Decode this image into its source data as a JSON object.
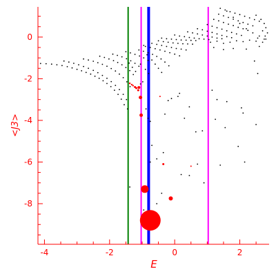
{
  "chart_data": {
    "type": "scatter",
    "xlabel": "E",
    "ylabel": "<J3>",
    "xlim": [
      -4.2,
      2.9
    ],
    "ylim": [
      -9.95,
      1.45
    ],
    "xticks": [
      -4,
      -2,
      0,
      2
    ],
    "yticks": [
      -8,
      -6,
      -4,
      -2,
      0
    ],
    "xtick_labels": [
      "-4",
      "-2",
      "0",
      "2"
    ],
    "ytick_labels": [
      "-8",
      "-6",
      "-4",
      "-2",
      "0"
    ],
    "colors": {
      "axes": "#ff0000",
      "points": "#000000",
      "highlight": "#ff0000",
      "green_line": "#008000",
      "magenta_line": "#ff00ff",
      "blue_line": "#0000ff"
    },
    "vertical_lines": [
      {
        "x": -1.43,
        "color": "#008000",
        "width": 2
      },
      {
        "x": -1.03,
        "color": "#ff00ff",
        "width": 2
      },
      {
        "x": -0.8,
        "color": "#0000ff",
        "width": 4
      },
      {
        "x": 1.03,
        "color": "#ff00ff",
        "width": 2
      }
    ],
    "series": [
      {
        "color": "#000000",
        "description": "black eigenstate points",
        "points": [
          [
            -4.12,
            -1.27
          ],
          [
            -3.95,
            -1.28
          ],
          [
            -3.78,
            -1.3
          ],
          [
            -3.62,
            -1.33
          ],
          [
            -3.46,
            -1.37
          ],
          [
            -3.3,
            -1.42
          ],
          [
            -3.15,
            -1.48
          ],
          [
            -3.0,
            -1.55
          ],
          [
            -2.86,
            -1.62
          ],
          [
            -2.72,
            -1.7
          ],
          [
            -2.58,
            -1.78
          ],
          [
            -2.45,
            -1.88
          ],
          [
            -2.32,
            -1.98
          ],
          [
            -2.2,
            -2.1
          ],
          [
            -2.08,
            -2.23
          ],
          [
            -1.96,
            -2.38
          ],
          [
            -1.85,
            -2.55
          ],
          [
            -1.74,
            -2.75
          ],
          [
            -1.64,
            -2.98
          ],
          [
            -1.55,
            -3.25
          ],
          [
            -3.4,
            -1.15
          ],
          [
            -3.25,
            -1.2
          ],
          [
            -3.1,
            -1.26
          ],
          [
            -2.95,
            -1.33
          ],
          [
            -2.8,
            -1.41
          ],
          [
            -2.65,
            -1.5
          ],
          [
            -2.5,
            -1.6
          ],
          [
            -2.36,
            -1.71
          ],
          [
            -2.22,
            -1.84
          ],
          [
            -2.08,
            -1.98
          ],
          [
            -1.95,
            -2.14
          ],
          [
            -1.82,
            -2.32
          ],
          [
            -1.7,
            -2.52
          ],
          [
            -1.58,
            -2.75
          ],
          [
            -1.48,
            -3.0
          ],
          [
            -2.8,
            -1.05
          ],
          [
            -2.65,
            -1.1
          ],
          [
            -2.5,
            -1.16
          ],
          [
            -2.36,
            -1.23
          ],
          [
            -2.22,
            -1.31
          ],
          [
            -2.08,
            -1.4
          ],
          [
            -1.95,
            -1.51
          ],
          [
            -1.82,
            -1.63
          ],
          [
            -1.7,
            -1.78
          ],
          [
            -1.58,
            -1.95
          ],
          [
            -1.47,
            -2.15
          ],
          [
            -1.37,
            -2.38
          ],
          [
            -2.3,
            -0.92
          ],
          [
            -2.16,
            -0.98
          ],
          [
            -2.02,
            -1.05
          ],
          [
            -1.88,
            -1.13
          ],
          [
            -1.75,
            -1.22
          ],
          [
            -1.62,
            -1.33
          ],
          [
            -1.5,
            -1.46
          ],
          [
            -1.38,
            -1.61
          ],
          [
            -1.27,
            -1.8
          ],
          [
            -1.9,
            -0.82
          ],
          [
            -1.76,
            -0.88
          ],
          [
            -1.62,
            -0.95
          ],
          [
            -1.48,
            -1.04
          ],
          [
            -1.35,
            -1.14
          ],
          [
            -1.22,
            -1.26
          ],
          [
            -1.1,
            -1.4
          ],
          [
            -1.5,
            -0.7
          ],
          [
            -1.36,
            -0.76
          ],
          [
            -1.22,
            -0.83
          ],
          [
            -1.08,
            -0.91
          ],
          [
            -0.95,
            -1.0
          ],
          [
            -0.82,
            -1.12
          ],
          [
            -1.1,
            -0.62
          ],
          [
            -0.96,
            -0.68
          ],
          [
            -0.82,
            -0.75
          ],
          [
            -0.68,
            -0.83
          ],
          [
            -0.55,
            -0.93
          ],
          [
            -0.42,
            -1.05
          ],
          [
            -0.3,
            -1.2
          ],
          [
            -0.18,
            -1.38
          ],
          [
            -0.9,
            -0.45
          ],
          [
            -0.75,
            -0.5
          ],
          [
            -0.6,
            -0.56
          ],
          [
            -0.45,
            -0.62
          ],
          [
            -0.3,
            -0.68
          ],
          [
            -0.15,
            -0.75
          ],
          [
            0.0,
            -0.82
          ],
          [
            0.15,
            -0.9
          ],
          [
            -0.7,
            -0.3
          ],
          [
            -0.55,
            -0.35
          ],
          [
            -0.4,
            -0.4
          ],
          [
            -0.25,
            -0.45
          ],
          [
            -0.1,
            -0.5
          ],
          [
            0.05,
            -0.55
          ],
          [
            0.2,
            -0.58
          ],
          [
            0.35,
            -0.62
          ],
          [
            -0.5,
            -0.18
          ],
          [
            -0.35,
            -0.22
          ],
          [
            -0.2,
            -0.25
          ],
          [
            -0.05,
            -0.28
          ],
          [
            0.1,
            -0.3
          ],
          [
            0.25,
            -0.32
          ],
          [
            0.4,
            -0.33
          ],
          [
            0.55,
            -0.34
          ],
          [
            -0.4,
            -0.05
          ],
          [
            -0.25,
            -0.08
          ],
          [
            -0.1,
            -0.1
          ],
          [
            0.05,
            -0.12
          ],
          [
            0.2,
            -0.14
          ],
          [
            0.35,
            -0.15
          ],
          [
            0.5,
            -0.16
          ],
          [
            0.65,
            -0.17
          ],
          [
            0.0,
            0.1
          ],
          [
            0.15,
            0.05
          ],
          [
            0.3,
            0.02
          ],
          [
            0.45,
            -0.02
          ],
          [
            0.6,
            -0.05
          ],
          [
            0.75,
            -0.08
          ],
          [
            0.9,
            -0.1
          ],
          [
            1.05,
            -0.12
          ],
          [
            0.4,
            0.25
          ],
          [
            0.55,
            0.2
          ],
          [
            0.7,
            0.15
          ],
          [
            0.85,
            0.1
          ],
          [
            1.0,
            0.05
          ],
          [
            1.15,
            0.0
          ],
          [
            1.3,
            -0.05
          ],
          [
            1.45,
            -0.08
          ],
          [
            0.7,
            0.4
          ],
          [
            0.85,
            0.35
          ],
          [
            1.0,
            0.28
          ],
          [
            1.15,
            0.22
          ],
          [
            1.3,
            0.15
          ],
          [
            1.45,
            0.08
          ],
          [
            1.6,
            0.02
          ],
          [
            1.75,
            -0.03
          ],
          [
            1.0,
            0.6
          ],
          [
            1.15,
            0.52
          ],
          [
            1.3,
            0.45
          ],
          [
            1.45,
            0.38
          ],
          [
            1.6,
            0.3
          ],
          [
            1.75,
            0.22
          ],
          [
            1.9,
            0.15
          ],
          [
            2.05,
            0.08
          ],
          [
            1.2,
            0.85
          ],
          [
            1.35,
            0.78
          ],
          [
            1.5,
            0.7
          ],
          [
            1.65,
            0.62
          ],
          [
            1.8,
            0.55
          ],
          [
            1.95,
            0.47
          ],
          [
            2.1,
            0.4
          ],
          [
            2.25,
            0.32
          ],
          [
            1.35,
            1.1
          ],
          [
            1.5,
            1.02
          ],
          [
            1.65,
            0.94
          ],
          [
            1.8,
            0.86
          ],
          [
            1.95,
            0.78
          ],
          [
            2.1,
            0.7
          ],
          [
            2.25,
            0.62
          ],
          [
            2.4,
            0.54
          ],
          [
            1.55,
            1.3
          ],
          [
            1.7,
            1.22
          ],
          [
            1.85,
            1.15
          ],
          [
            2.0,
            1.08
          ],
          [
            2.15,
            1.0
          ],
          [
            2.3,
            0.92
          ],
          [
            2.45,
            0.84
          ],
          [
            2.6,
            0.76
          ],
          [
            1.4,
            1.38
          ],
          [
            1.6,
            1.25
          ],
          [
            1.8,
            0.95
          ],
          [
            2.0,
            0.65
          ],
          [
            2.2,
            0.4
          ],
          [
            2.4,
            0.2
          ],
          [
            2.6,
            0.05
          ],
          [
            2.75,
            -0.1
          ],
          [
            1.1,
            -0.25
          ],
          [
            1.3,
            -0.2
          ],
          [
            1.5,
            -0.3
          ],
          [
            1.7,
            -0.25
          ],
          [
            1.9,
            -0.18
          ],
          [
            2.1,
            -0.22
          ],
          [
            2.3,
            -0.15
          ],
          [
            2.5,
            -0.2
          ],
          [
            2.7,
            -0.25
          ],
          [
            2.8,
            -0.1
          ],
          [
            2.5,
            1.05
          ],
          [
            2.65,
            0.85
          ],
          [
            2.75,
            0.65
          ],
          [
            2.8,
            0.45
          ],
          [
            2.7,
            0.3
          ],
          [
            2.85,
            0.2
          ],
          [
            2.55,
            -0.05
          ],
          [
            2.78,
            0.05
          ],
          [
            1.2,
            -0.5
          ],
          [
            1.5,
            -0.6
          ],
          [
            1.8,
            -0.55
          ],
          [
            2.2,
            -0.58
          ],
          [
            2.6,
            -0.45
          ],
          [
            2.45,
            -1.15
          ],
          [
            2.55,
            -1.75
          ],
          [
            -0.95,
            -0.4
          ],
          [
            -0.85,
            -0.85
          ],
          [
            -0.7,
            -1.1
          ],
          [
            -0.6,
            -1.3
          ],
          [
            -0.5,
            -1.5
          ],
          [
            -0.4,
            -1.7
          ],
          [
            -1.4,
            -1.25
          ],
          [
            -1.3,
            -1.45
          ],
          [
            -1.2,
            -1.65
          ],
          [
            -1.05,
            -1.3
          ],
          [
            -0.9,
            -1.55
          ],
          [
            -0.8,
            -1.75
          ],
          [
            -1.45,
            -3.45
          ],
          [
            -1.38,
            -7.2
          ],
          [
            -1.05,
            -2.25
          ],
          [
            -0.98,
            -2.15
          ],
          [
            -0.88,
            -3.45
          ],
          [
            -0.82,
            -3.9
          ],
          [
            -0.75,
            -4.05
          ],
          [
            -0.7,
            -5.2
          ],
          [
            -0.55,
            -5.85
          ],
          [
            -0.75,
            -6.0
          ],
          [
            -0.3,
            -3.7
          ],
          [
            -0.2,
            -3.05
          ],
          [
            -0.1,
            -2.95
          ],
          [
            0.1,
            -2.85
          ],
          [
            0.15,
            -2.7
          ],
          [
            0.3,
            -3.9
          ],
          [
            0.45,
            -3.35
          ],
          [
            0.65,
            -4.55
          ],
          [
            0.7,
            -6.1
          ],
          [
            0.85,
            -4.5
          ],
          [
            0.9,
            -7.0
          ],
          [
            1.15,
            -2.55
          ],
          [
            1.3,
            -3.0
          ],
          [
            1.4,
            -6.15
          ],
          [
            1.55,
            -4.35
          ],
          [
            1.6,
            -3.1
          ],
          [
            1.95,
            -5.25
          ],
          [
            2.05,
            -3.4
          ],
          [
            2.1,
            -3.65
          ],
          [
            2.5,
            -4.2
          ],
          [
            2.15,
            -6.0
          ],
          [
            -0.55,
            -8.0
          ],
          [
            -0.4,
            -7.5
          ],
          [
            -0.95,
            -8.3
          ],
          [
            0.2,
            -6.6
          ],
          [
            0.45,
            -6.65
          ],
          [
            -0.35,
            -5.55
          ],
          [
            1.25,
            -3.95
          ]
        ]
      },
      {
        "color": "#ff0000",
        "description": "red weighted points",
        "points": [
          [
            -1.38,
            -2.22,
            1.2
          ],
          [
            -1.32,
            -2.28,
            1.2
          ],
          [
            -1.28,
            -2.33,
            1.2
          ],
          [
            -1.22,
            -2.4,
            1.5
          ],
          [
            -1.18,
            -2.45,
            1.5
          ],
          [
            -1.1,
            -2.42,
            2.0
          ],
          [
            -1.12,
            -2.55,
            1.5
          ],
          [
            -1.05,
            -2.9,
            2.5
          ],
          [
            -1.03,
            -3.75,
            2.5
          ],
          [
            -0.45,
            -2.85,
            1.0
          ],
          [
            -0.35,
            -6.1,
            1.5
          ],
          [
            0.5,
            -6.2,
            1.0
          ],
          [
            -0.92,
            -7.3,
            5.5
          ],
          [
            -0.12,
            -7.75,
            3.0
          ],
          [
            -0.75,
            -8.8,
            15
          ]
        ]
      }
    ]
  }
}
